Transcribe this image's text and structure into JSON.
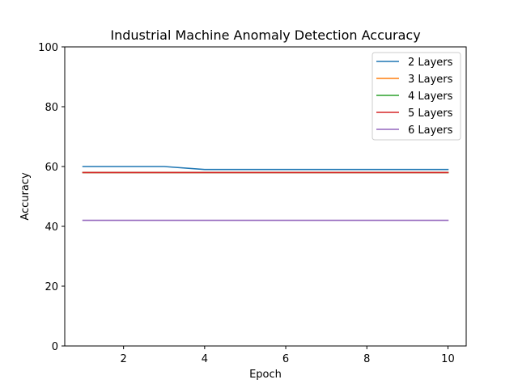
{
  "chart_data": {
    "type": "line",
    "title": "Industrial Machine Anomaly Detection Accuracy",
    "xlabel": "Epoch",
    "ylabel": "Accuracy",
    "xlim": [
      0.55,
      10.45
    ],
    "ylim": [
      0,
      100
    ],
    "xticks": [
      2,
      4,
      6,
      8,
      10
    ],
    "yticks": [
      0,
      20,
      40,
      60,
      80,
      100
    ],
    "x": [
      1,
      2,
      3,
      4,
      5,
      6,
      7,
      8,
      9,
      10
    ],
    "grid": false,
    "legend_position": "top-right",
    "series": [
      {
        "name": "2 Layers",
        "color": "#1f77b4",
        "values": [
          60,
          60,
          60,
          59,
          59,
          59,
          59,
          59,
          59,
          59
        ]
      },
      {
        "name": "3 Layers",
        "color": "#ff7f0e",
        "values": [
          58,
          58,
          58,
          58,
          58,
          58,
          58,
          58,
          58,
          58
        ]
      },
      {
        "name": "4 Layers",
        "color": "#2ca02c",
        "values": [
          58,
          58,
          58,
          58,
          58,
          58,
          58,
          58,
          58,
          58
        ]
      },
      {
        "name": "5 Layers",
        "color": "#d62728",
        "values": [
          58,
          58,
          58,
          58,
          58,
          58,
          58,
          58,
          58,
          58
        ]
      },
      {
        "name": "6 Layers",
        "color": "#9467bd",
        "values": [
          42,
          42,
          42,
          42,
          42,
          42,
          42,
          42,
          42,
          42
        ]
      }
    ]
  }
}
